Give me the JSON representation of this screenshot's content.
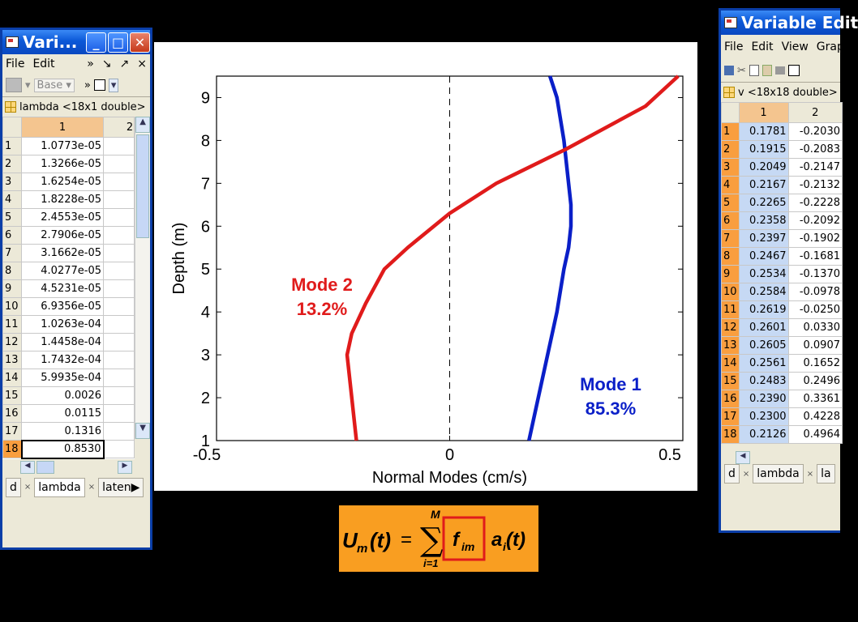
{
  "left_window": {
    "title": "Vari...",
    "menus": [
      "File",
      "Edit"
    ],
    "menu_right": [
      "»",
      "↘",
      "↗",
      "×"
    ],
    "toolbar": {
      "base_label": "Base",
      "more": "»"
    },
    "variable_label": "lambda <18x1 double>",
    "columns": [
      "1",
      "2"
    ],
    "rows": [
      {
        "n": "1",
        "v": "1.0773e-05"
      },
      {
        "n": "2",
        "v": "1.3266e-05"
      },
      {
        "n": "3",
        "v": "1.6254e-05"
      },
      {
        "n": "4",
        "v": "1.8228e-05"
      },
      {
        "n": "5",
        "v": "2.4553e-05"
      },
      {
        "n": "6",
        "v": "2.7906e-05"
      },
      {
        "n": "7",
        "v": "3.1662e-05"
      },
      {
        "n": "8",
        "v": "4.0277e-05"
      },
      {
        "n": "9",
        "v": "4.5231e-05"
      },
      {
        "n": "10",
        "v": "6.9356e-05"
      },
      {
        "n": "11",
        "v": "1.0263e-04"
      },
      {
        "n": "12",
        "v": "1.4458e-04"
      },
      {
        "n": "13",
        "v": "1.7432e-04"
      },
      {
        "n": "14",
        "v": "5.9935e-04"
      },
      {
        "n": "15",
        "v": "0.0026"
      },
      {
        "n": "16",
        "v": "0.0115"
      },
      {
        "n": "17",
        "v": "0.1316"
      },
      {
        "n": "18",
        "v": "0.8530"
      }
    ],
    "tabs": [
      "d",
      "lambda",
      "laten"
    ]
  },
  "right_window": {
    "title": "Variable Edit",
    "menus": [
      "File",
      "Edit",
      "View",
      "Grap"
    ],
    "variable_label": "v <18x18 double>",
    "columns": [
      "1",
      "2"
    ],
    "rows": [
      {
        "n": "1",
        "a": "0.1781",
        "b": "-0.2030"
      },
      {
        "n": "2",
        "a": "0.1915",
        "b": "-0.2083"
      },
      {
        "n": "3",
        "a": "0.2049",
        "b": "-0.2147"
      },
      {
        "n": "4",
        "a": "0.2167",
        "b": "-0.2132"
      },
      {
        "n": "5",
        "a": "0.2265",
        "b": "-0.2228"
      },
      {
        "n": "6",
        "a": "0.2358",
        "b": "-0.2092"
      },
      {
        "n": "7",
        "a": "0.2397",
        "b": "-0.1902"
      },
      {
        "n": "8",
        "a": "0.2467",
        "b": "-0.1681"
      },
      {
        "n": "9",
        "a": "0.2534",
        "b": "-0.1370"
      },
      {
        "n": "10",
        "a": "0.2584",
        "b": "-0.0978"
      },
      {
        "n": "11",
        "a": "0.2619",
        "b": "-0.0250"
      },
      {
        "n": "12",
        "a": "0.2601",
        "b": "0.0330"
      },
      {
        "n": "13",
        "a": "0.2605",
        "b": "0.0907"
      },
      {
        "n": "14",
        "a": "0.2561",
        "b": "0.1652"
      },
      {
        "n": "15",
        "a": "0.2483",
        "b": "0.2496"
      },
      {
        "n": "16",
        "a": "0.2390",
        "b": "0.3361"
      },
      {
        "n": "17",
        "a": "0.2300",
        "b": "0.4228"
      },
      {
        "n": "18",
        "a": "0.2126",
        "b": "0.4964"
      }
    ],
    "tabs": [
      "d",
      "lambda",
      "la"
    ]
  },
  "chart_data": {
    "type": "line",
    "xlabel": "Normal Modes (cm/s)",
    "ylabel": "Depth (m)",
    "xlim": [
      -0.5,
      0.5
    ],
    "ylim": [
      1,
      9.5
    ],
    "xticks": [
      "-0.5",
      "0",
      "0.5"
    ],
    "yticks": [
      "1",
      "2",
      "3",
      "4",
      "5",
      "6",
      "7",
      "8",
      "9"
    ],
    "series": [
      {
        "name": "Mode 1",
        "color": "#0a1fc8",
        "x": [
          0.17,
          0.19,
          0.21,
          0.23,
          0.245,
          0.255,
          0.26,
          0.26,
          0.255,
          0.245,
          0.23,
          0.215
        ],
        "y": [
          1,
          2,
          3,
          4,
          5,
          5.5,
          6,
          6.5,
          7,
          8,
          9,
          9.5
        ]
      },
      {
        "name": "Mode 2",
        "color": "#e01b1b",
        "x": [
          -0.2,
          -0.21,
          -0.22,
          -0.21,
          -0.18,
          -0.14,
          -0.09,
          0.0,
          0.1,
          0.25,
          0.42,
          0.49
        ],
        "y": [
          1,
          2,
          3,
          3.5,
          4.2,
          5,
          5.5,
          6.3,
          7,
          7.8,
          8.8,
          9.5
        ]
      }
    ],
    "annotations": [
      {
        "line1": "Mode 2",
        "line2": "13.2%",
        "color": "#e01b1b"
      },
      {
        "line1": "Mode 1",
        "line2": "85.3%",
        "color": "#0a1fc8"
      }
    ],
    "zero_line": "dashed"
  },
  "formula": {
    "lhs_base": "U",
    "lhs_sub": "m",
    "arg": "(t)",
    "eq": "=",
    "sum_top": "M",
    "sum_bottom": "i=1",
    "f_base": "f",
    "f_sub": "im",
    "a_base": "a",
    "a_sub": "i",
    "a_arg": "(t)"
  },
  "colors": {
    "formula_bg": "#f99e21",
    "xp_title": "#0b58d8",
    "header_orange": "#f4c58f"
  }
}
